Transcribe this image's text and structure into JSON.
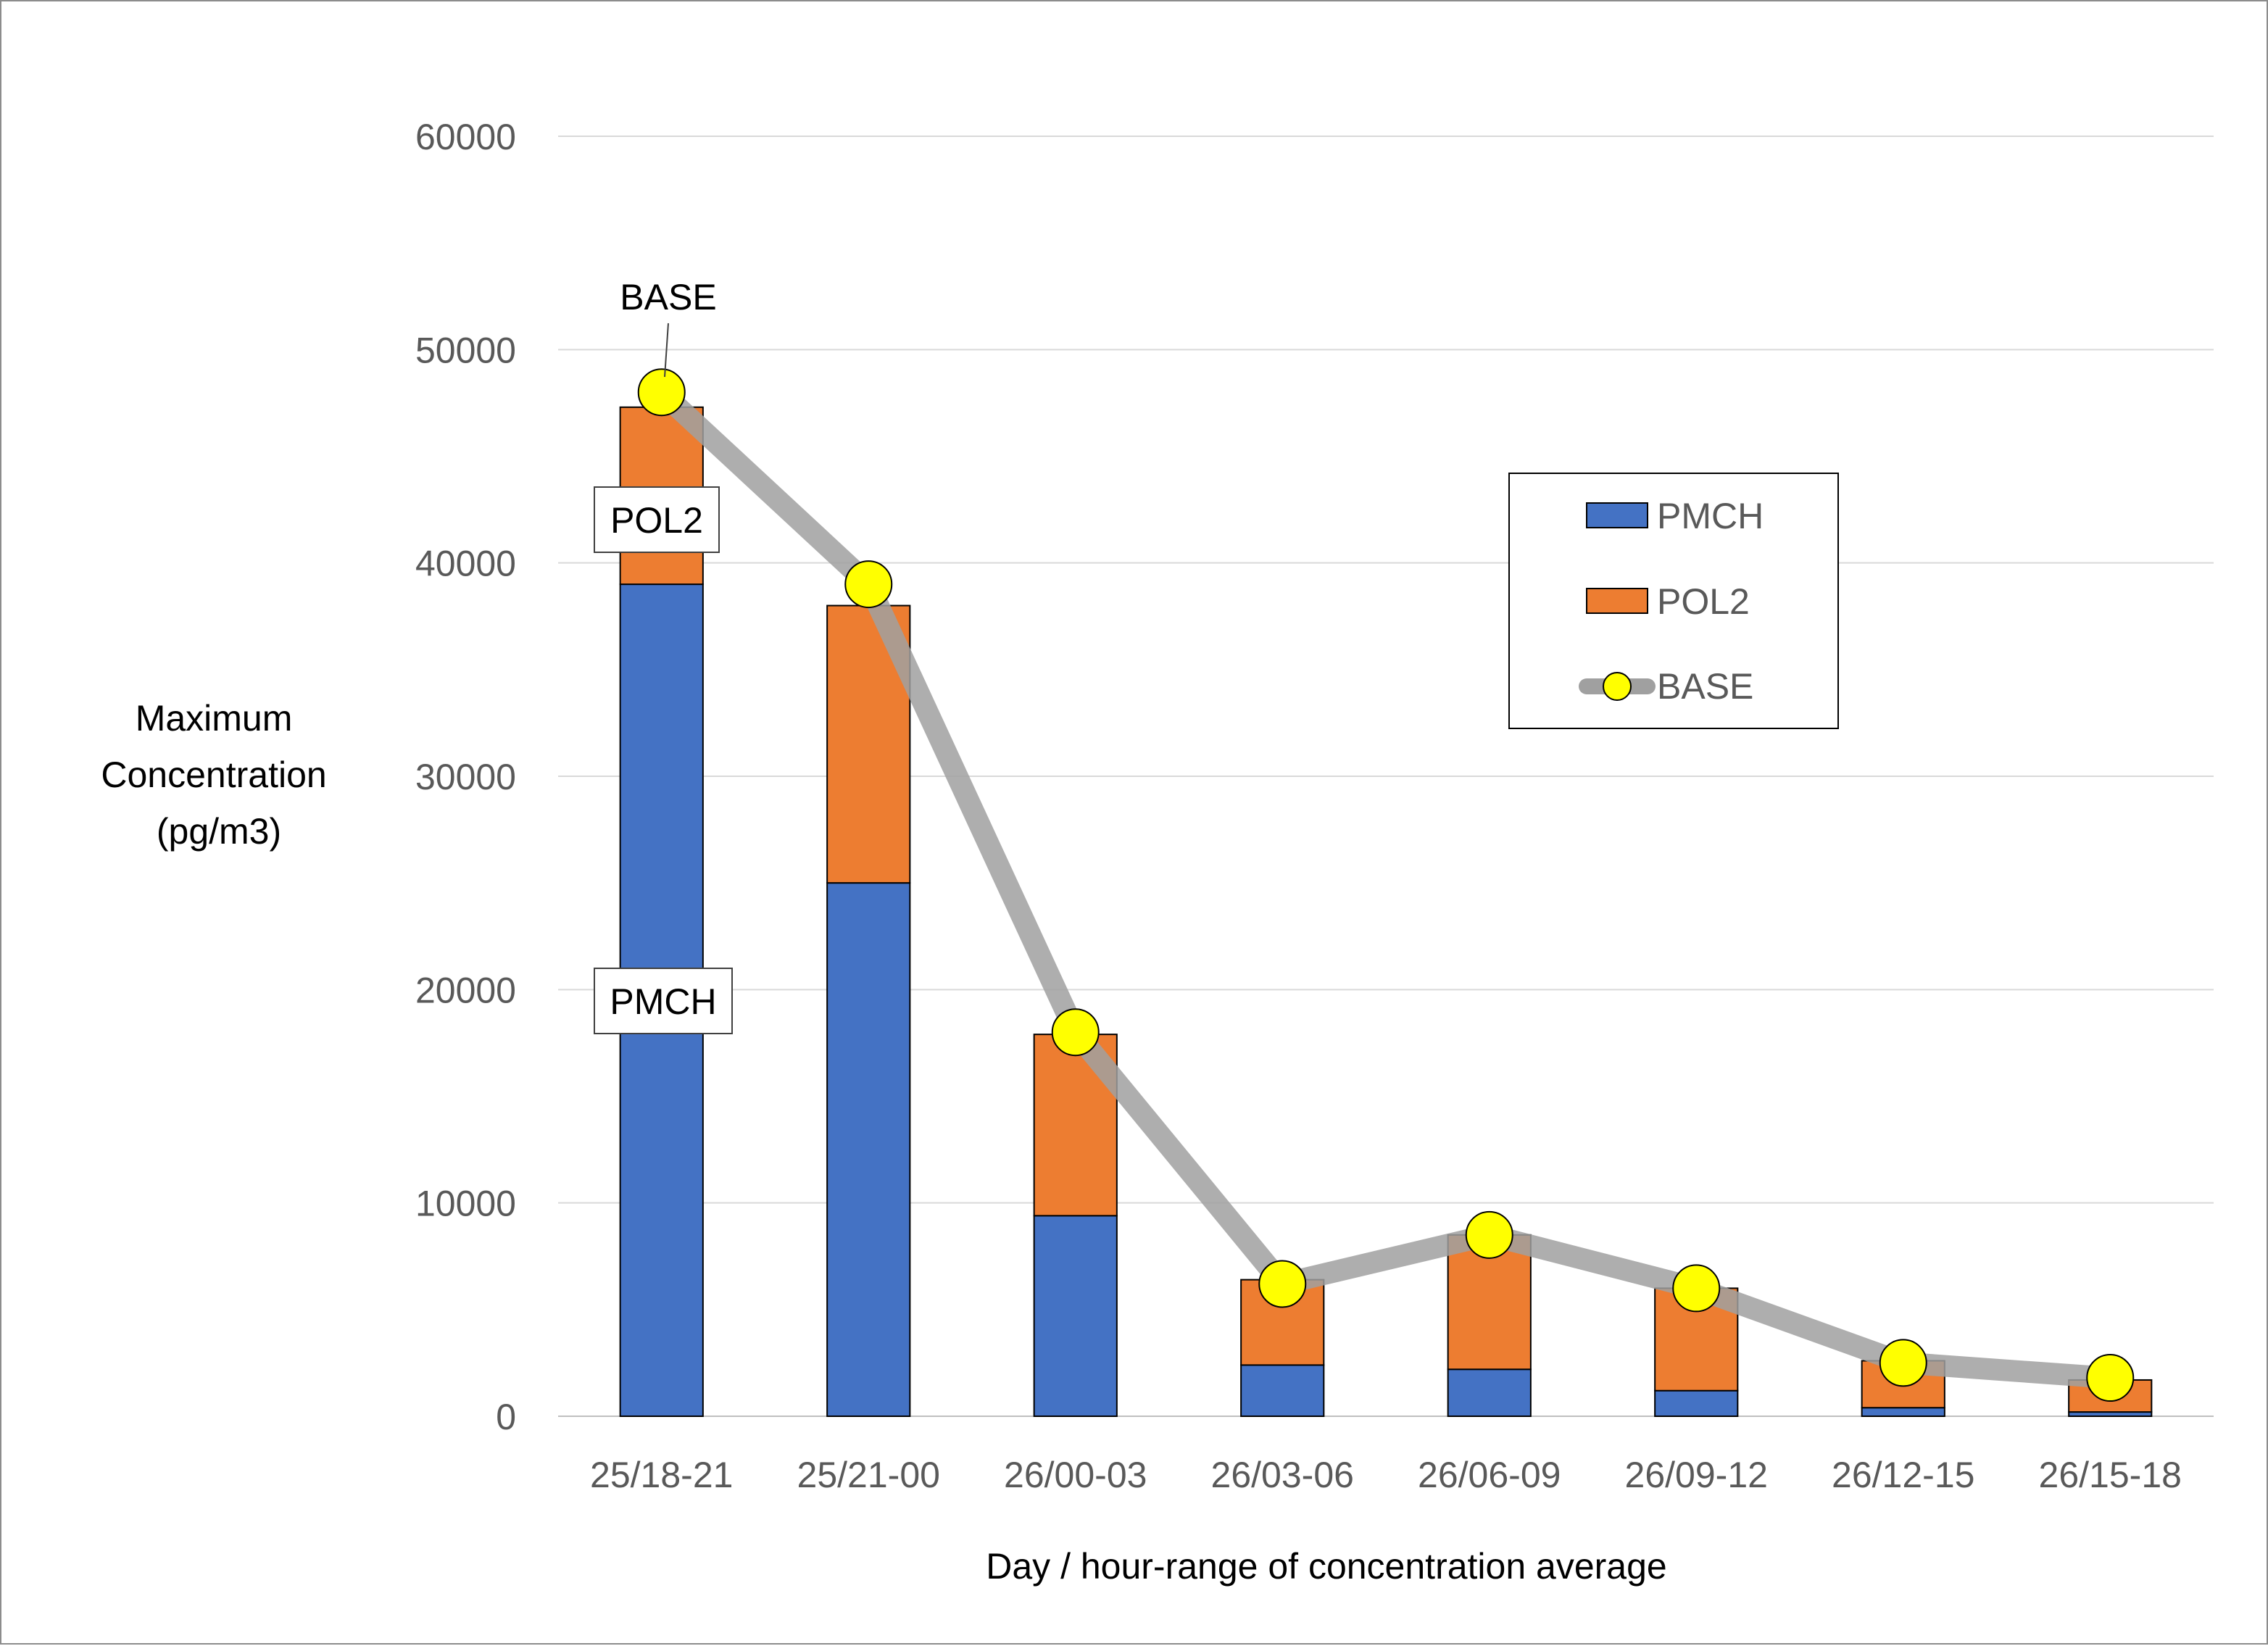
{
  "chart_data": {
    "type": "bar",
    "stacked": true,
    "categories": [
      "25/18-21",
      "25/21-00",
      "26/00-03",
      "26/03-06",
      "26/06-09",
      "26/09-12",
      "26/12-15",
      "26/15-18"
    ],
    "series": [
      {
        "name": "PMCH",
        "kind": "bar",
        "color": "#4472C4",
        "values": [
          39000,
          25000,
          9400,
          2400,
          2200,
          1200,
          400,
          200
        ]
      },
      {
        "name": "POL2",
        "kind": "bar",
        "color": "#ED7D31",
        "values": [
          8300,
          13000,
          8500,
          4000,
          6300,
          4800,
          2200,
          1500
        ]
      },
      {
        "name": "BASE",
        "kind": "line",
        "color": "#A0A0A0",
        "marker_color": "#FFFF00",
        "values": [
          48000,
          39000,
          18000,
          6200,
          8500,
          6000,
          2500,
          1800
        ]
      }
    ],
    "xlabel": "Day / hour-range of concentration average",
    "ylabel": [
      "Maximum",
      "Concentration",
      "(pg/m3)"
    ],
    "ylim": [
      0,
      60000
    ],
    "yticks": [
      0,
      10000,
      20000,
      30000,
      40000,
      50000,
      60000
    ],
    "grid": "horizontal",
    "legend": {
      "position": "right",
      "entries": [
        "PMCH",
        "POL2",
        "BASE"
      ]
    },
    "callouts": {
      "base": "BASE",
      "pol2": "POL2",
      "pmch": "PMCH"
    }
  }
}
